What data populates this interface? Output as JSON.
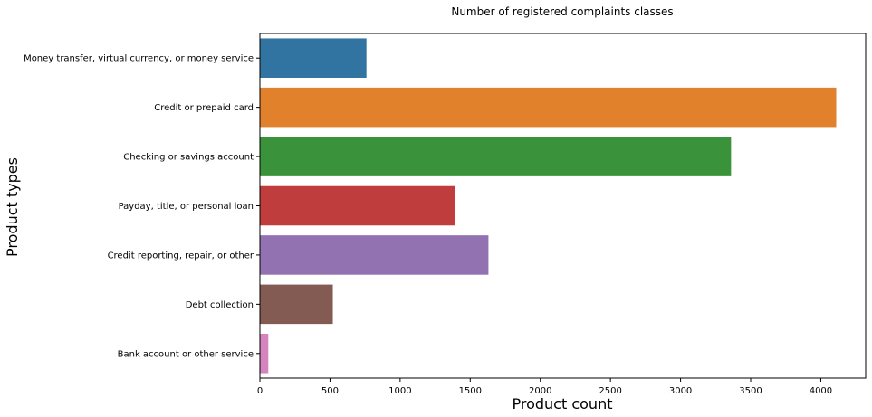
{
  "chart_data": {
    "type": "bar",
    "orientation": "horizontal",
    "title": "Number of registered complaints classes",
    "xlabel": "Product count",
    "ylabel": "Product types",
    "categories": [
      "Money transfer, virtual currency, or money service",
      "Credit or prepaid card",
      "Checking or savings account",
      "Payday, title, or personal loan",
      "Credit reporting, repair, or other",
      "Debt collection",
      "Bank account or other service"
    ],
    "values": [
      760,
      4110,
      3360,
      1390,
      1630,
      520,
      60
    ],
    "colors": [
      "#3274a1",
      "#e1812c",
      "#3a923a",
      "#c03d3e",
      "#9372b2",
      "#845b53",
      "#d684bd"
    ],
    "xlim": [
      0,
      4320
    ],
    "xticks": [
      0,
      500,
      1000,
      1500,
      2000,
      2500,
      3000,
      3500,
      4000
    ],
    "grid": false,
    "legend": "none"
  }
}
